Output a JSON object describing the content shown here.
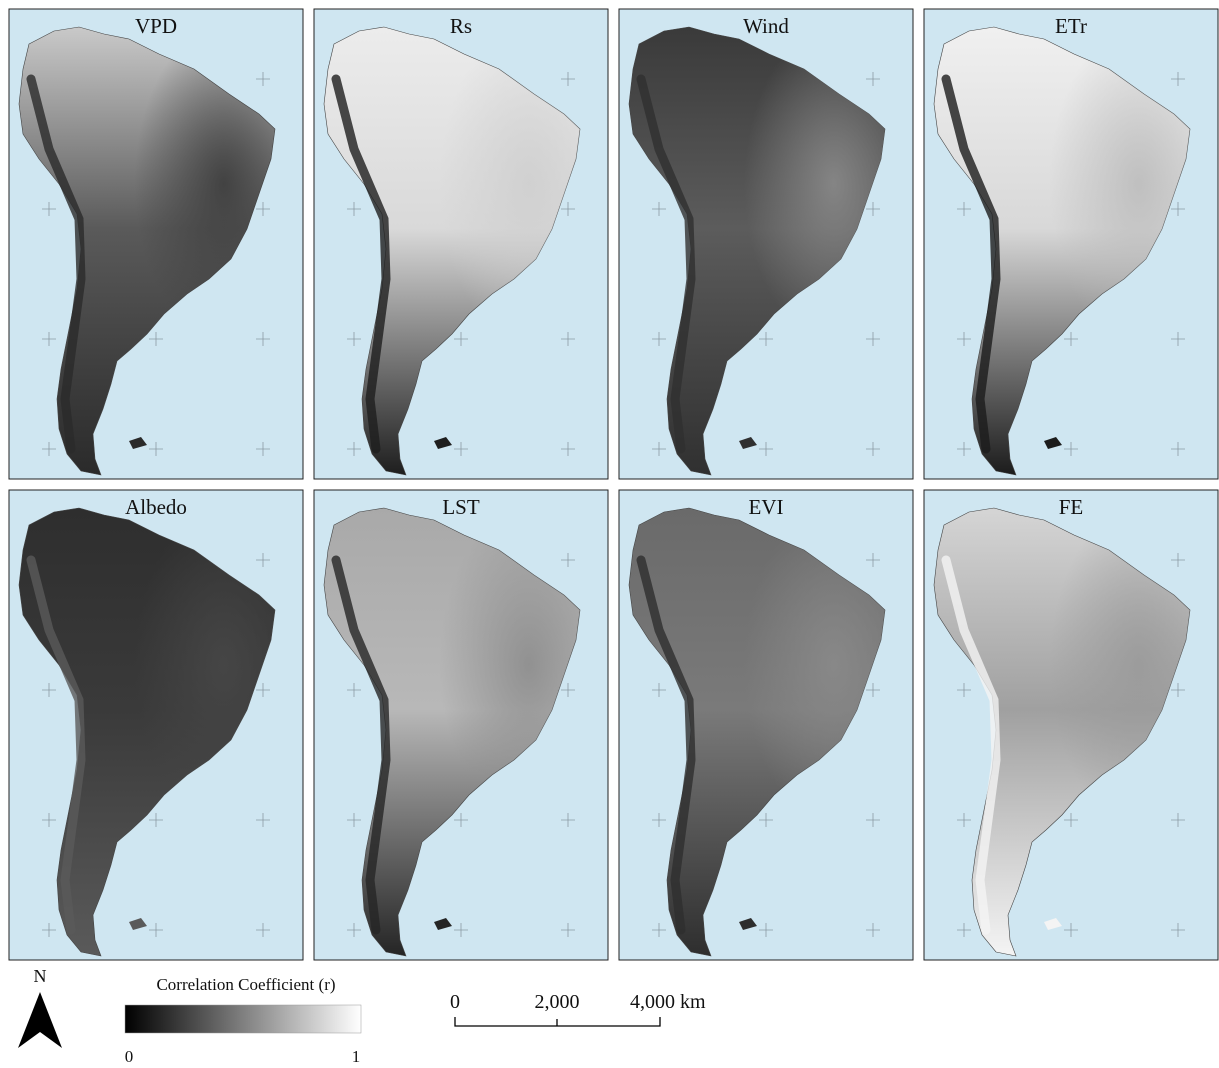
{
  "panels": [
    {
      "title": "VPD"
    },
    {
      "title": "Rs"
    },
    {
      "title": "Wind"
    },
    {
      "title": "ETr"
    },
    {
      "title": "Albedo"
    },
    {
      "title": "LST"
    },
    {
      "title": "EVI"
    },
    {
      "title": "FE"
    }
  ],
  "north_arrow": {
    "label": "N"
  },
  "legend": {
    "title": "Correlation Coefficient (r)",
    "min_label": "0",
    "max_label": "1"
  },
  "scale_bar": {
    "labels": [
      "0",
      "2,000",
      "4,000 km"
    ]
  }
}
